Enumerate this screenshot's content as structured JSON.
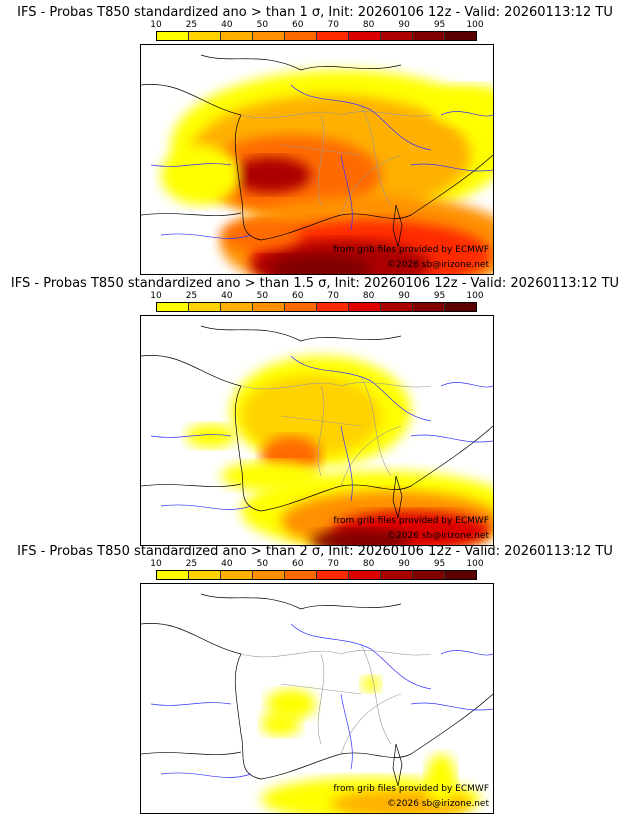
{
  "panels": [
    {
      "title": "IFS - Probas T850  standardized ano > than 1 σ, Init: 20260106 12z - Valid: 20260113:12 TU",
      "threshold": "1 σ",
      "intensity": 1.0
    },
    {
      "title": "IFS - Probas T850  standardized ano > than 1.5 σ, Init: 20260106 12z - Valid: 20260113:12 TU",
      "threshold": "1.5 σ",
      "intensity": 0.6
    },
    {
      "title": "IFS - Probas T850  standardized ano > than 2 σ, Init: 20260106 12z - Valid: 20260113:12 TU",
      "threshold": "2 σ",
      "intensity": 0.25
    }
  ],
  "colorbar": {
    "ticks": [
      "10",
      "25",
      "40",
      "50",
      "60",
      "70",
      "80",
      "90",
      "95",
      "100"
    ],
    "colors": [
      "#ffff00",
      "#ffd200",
      "#ffb000",
      "#ff9000",
      "#ff6a00",
      "#ff2a00",
      "#dd0000",
      "#aa0000",
      "#800000",
      "#5a0000"
    ]
  },
  "credits": {
    "source": "from grib files provided by ECMWF",
    "copyright": "©2026 sb@irizone.net"
  }
}
